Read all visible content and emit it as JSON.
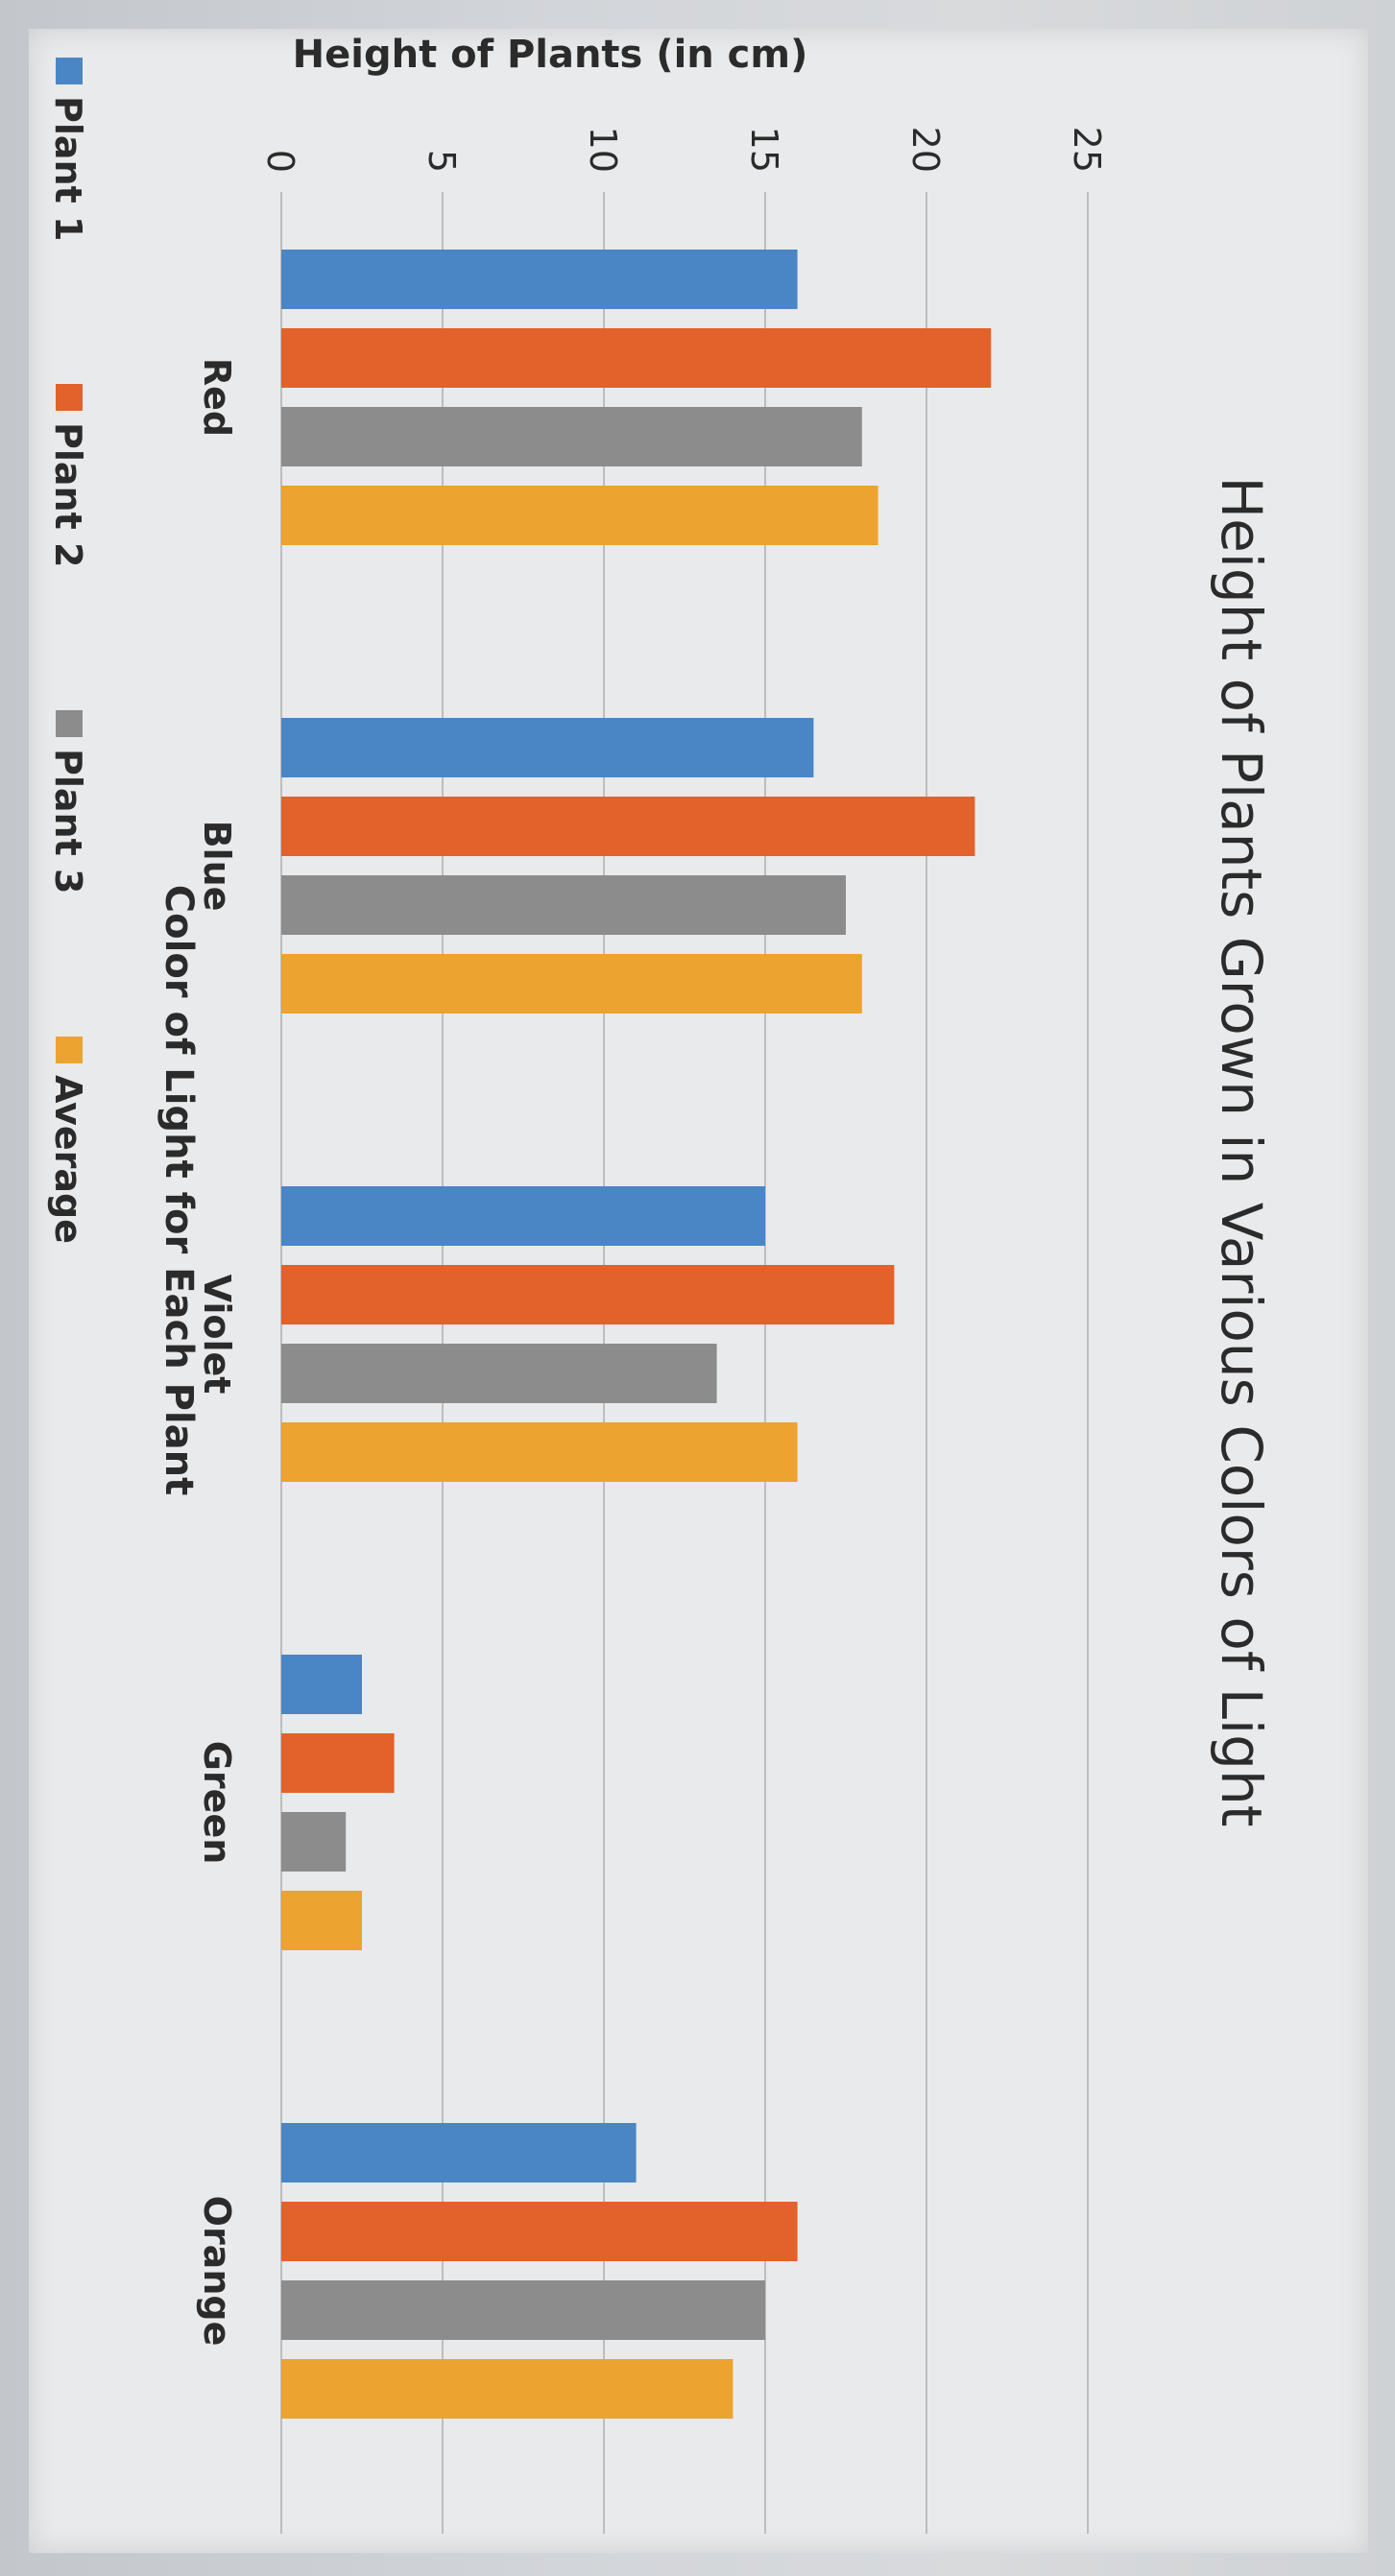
{
  "chart_data": {
    "type": "bar",
    "title": "Height of Plants Grown in Various Colors of Light",
    "xlabel": "Color of Light for Each Plant",
    "ylabel": "Height of Plants (in cm)",
    "categories": [
      "Red",
      "Blue",
      "Violet",
      "Green",
      "Orange"
    ],
    "ylim": [
      0,
      25
    ],
    "yticks": [
      0,
      5,
      10,
      15,
      20,
      25
    ],
    "grid": true,
    "legend_position": "bottom",
    "series": [
      {
        "name": "Plant 1",
        "color": "#4a86c6",
        "values": [
          16,
          16.5,
          15,
          2.5,
          11
        ]
      },
      {
        "name": "Plant 2",
        "color": "#e3612a",
        "values": [
          22,
          21.5,
          19,
          3.5,
          16
        ]
      },
      {
        "name": "Plant 3",
        "color": "#8c8c8c",
        "values": [
          18,
          17.5,
          13.5,
          2,
          15
        ]
      },
      {
        "name": "Average",
        "color": "#eda32f",
        "values": [
          18.5,
          18,
          16,
          2.5,
          14
        ]
      }
    ]
  }
}
